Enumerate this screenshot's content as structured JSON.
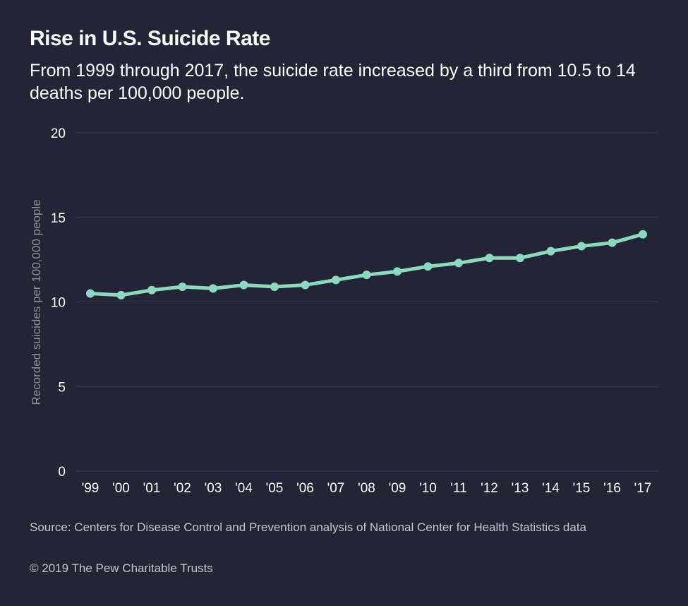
{
  "title": "Rise in U.S. Suicide Rate",
  "subtitle": "From 1999 through 2017, the suicide rate increased by a third from 10.5 to 14 deaths per 100,000 people.",
  "source": "Source: Centers for Disease Control and Prevention analysis of National Center for Health Statistics data",
  "copyright": "© 2019 The Pew Charitable Trusts",
  "colors": {
    "background": "#222536",
    "line": "#8ed8bf",
    "grid": "#3b3e52",
    "axis_text": "#ffffff",
    "ylabel_text": "#8c8f9c"
  },
  "chart_data": {
    "type": "line",
    "title": "Rise in U.S. Suicide Rate",
    "xlabel": "",
    "ylabel": "Recorded suicides per 100,000 people",
    "categories": [
      "'99",
      "'00",
      "'01",
      "'02",
      "'03",
      "'04",
      "'05",
      "'06",
      "'07",
      "'08",
      "'09",
      "'10",
      "'11",
      "'12",
      "'13",
      "'14",
      "'15",
      "'16",
      "'17"
    ],
    "series": [
      {
        "values": [
          10.5,
          10.4,
          10.7,
          10.9,
          10.8,
          11.0,
          10.9,
          11.0,
          11.3,
          11.6,
          11.8,
          12.1,
          12.3,
          12.6,
          12.6,
          13.0,
          13.3,
          13.5,
          14.0
        ]
      }
    ],
    "ylim": [
      0,
      20
    ],
    "yticks": [
      "0",
      "5",
      "10",
      "15",
      "20"
    ],
    "grid": true,
    "legend": "none"
  }
}
